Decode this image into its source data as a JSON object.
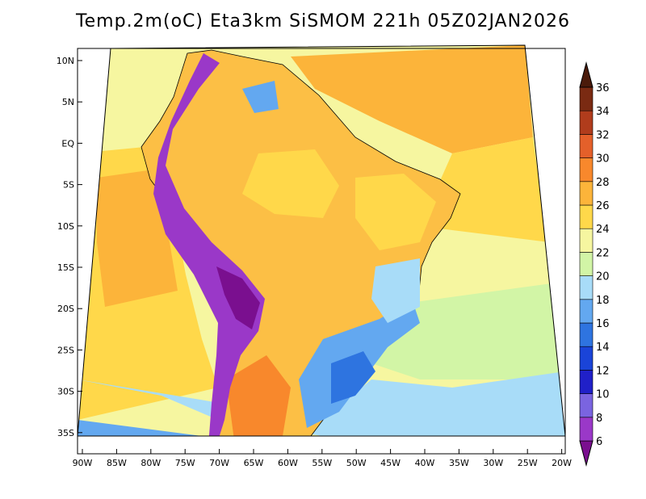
{
  "title": "Temp.2m(oC) Eta3km SiSMOM 221h 05Z02JAN2026",
  "axes": {
    "lat_labels": [
      "10N",
      "5N",
      "EQ",
      "5S",
      "10S",
      "15S",
      "20S",
      "25S",
      "30S",
      "35S"
    ],
    "lon_labels": [
      "90W",
      "85W",
      "80W",
      "75W",
      "70W",
      "65W",
      "60W",
      "55W",
      "50W",
      "45W",
      "40W",
      "35W",
      "30W",
      "25W",
      "20W"
    ]
  },
  "colorbar": {
    "units": "oC",
    "levels": [
      "6",
      "8",
      "10",
      "12",
      "14",
      "16",
      "18",
      "20",
      "22",
      "24",
      "26",
      "28",
      "30",
      "32",
      "34",
      "36"
    ],
    "colors": [
      "#7a0f8f",
      "#9a38c8",
      "#7a64e0",
      "#2020c8",
      "#1a44d8",
      "#2e74e0",
      "#63a8f0",
      "#a8dcf8",
      "#d2f5a6",
      "#f6f6a0",
      "#ffd84a",
      "#fcb43a",
      "#f8882c",
      "#e4602a",
      "#b03c1c",
      "#7a2a12",
      "#4a1a0a"
    ]
  },
  "map_colors": {
    "ocean_warm": "#fcb43a",
    "ocean_mid": "#ffd84a",
    "ocean_pale": "#f6f6a0",
    "ocean_green": "#d2f5a6",
    "ocean_cool": "#a8dcf8",
    "land_main": "#fcbf45",
    "andes": "#7a0f8f"
  }
}
